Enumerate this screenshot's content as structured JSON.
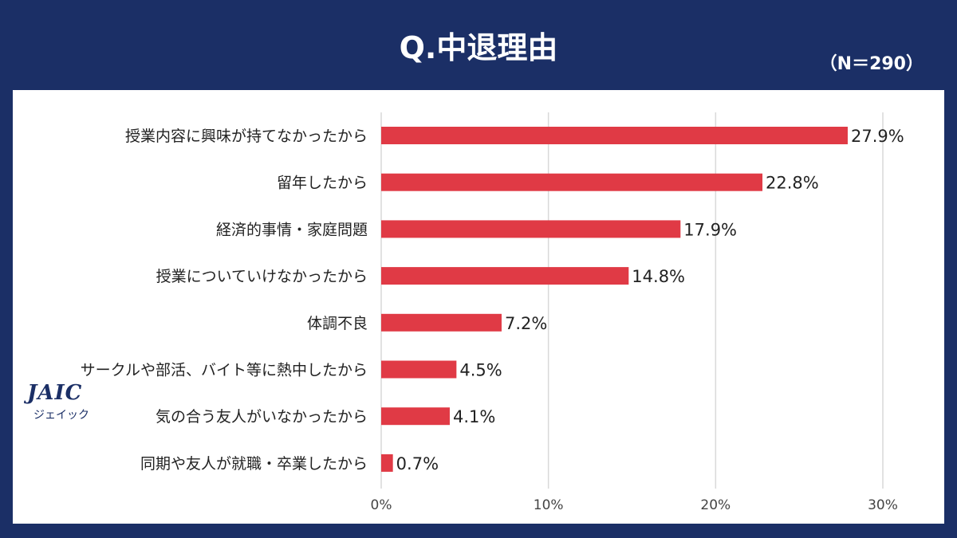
{
  "header": {
    "title": "Q.中退理由",
    "sample": "（N＝290）"
  },
  "logo": {
    "text": "JAIC",
    "subtext": "ジェイック"
  },
  "colors": {
    "background": "#1b2f66",
    "bar": "#e03a45",
    "grid": "#d9d9d9"
  },
  "chart_data": {
    "type": "bar",
    "orientation": "horizontal",
    "title": "Q.中退理由",
    "categories": [
      "授業内容に興味が持てなかったから",
      "留年したから",
      "経済的事情・家庭問題",
      "授業についていけなかったから",
      "体調不良",
      "サークルや部活、バイト等に熱中したから",
      "気の合う友人がいなかったから",
      "同期や友人が就職・卒業したから"
    ],
    "values": [
      27.9,
      22.8,
      17.9,
      14.8,
      7.2,
      4.5,
      4.1,
      0.7
    ],
    "value_labels": [
      "27.9%",
      "22.8%",
      "17.9%",
      "14.8%",
      "7.2%",
      "4.5%",
      "4.1%",
      "0.7%"
    ],
    "xlim": [
      0,
      30
    ],
    "x_ticks": [
      "0%",
      "10%",
      "20%",
      "30%"
    ],
    "grid": true
  }
}
